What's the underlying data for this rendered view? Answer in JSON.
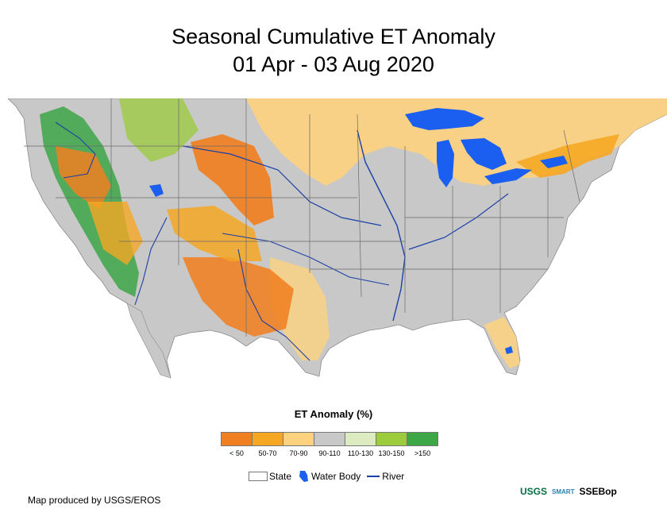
{
  "title": {
    "line1": "Seasonal Cumulative ET Anomaly",
    "line2": "01 Apr - 03 Aug 2020"
  },
  "legend": {
    "title": "ET Anomaly (%)",
    "classes": [
      {
        "label": "< 50",
        "color": "#f07f21"
      },
      {
        "label": "50-70",
        "color": "#f5a724"
      },
      {
        "label": "70-90",
        "color": "#fdd27e"
      },
      {
        "label": "90-110",
        "color": "#c8c8c8"
      },
      {
        "label": "110-130",
        "color": "#ddebc0"
      },
      {
        "label": "130-150",
        "color": "#9ccb3b"
      },
      {
        "label": ">150",
        "color": "#3da646"
      }
    ],
    "keys": {
      "state": "State",
      "water_body": "Water Body",
      "river": "River"
    }
  },
  "credit": "Map produced by USGS/EROS",
  "logos": {
    "usgs": "USGS",
    "smart": "SMART",
    "ssebop": "SSEBop"
  },
  "colors": {
    "water": "#1a5ff0",
    "river": "#1b3fa6",
    "border": "#6a6a6a"
  }
}
